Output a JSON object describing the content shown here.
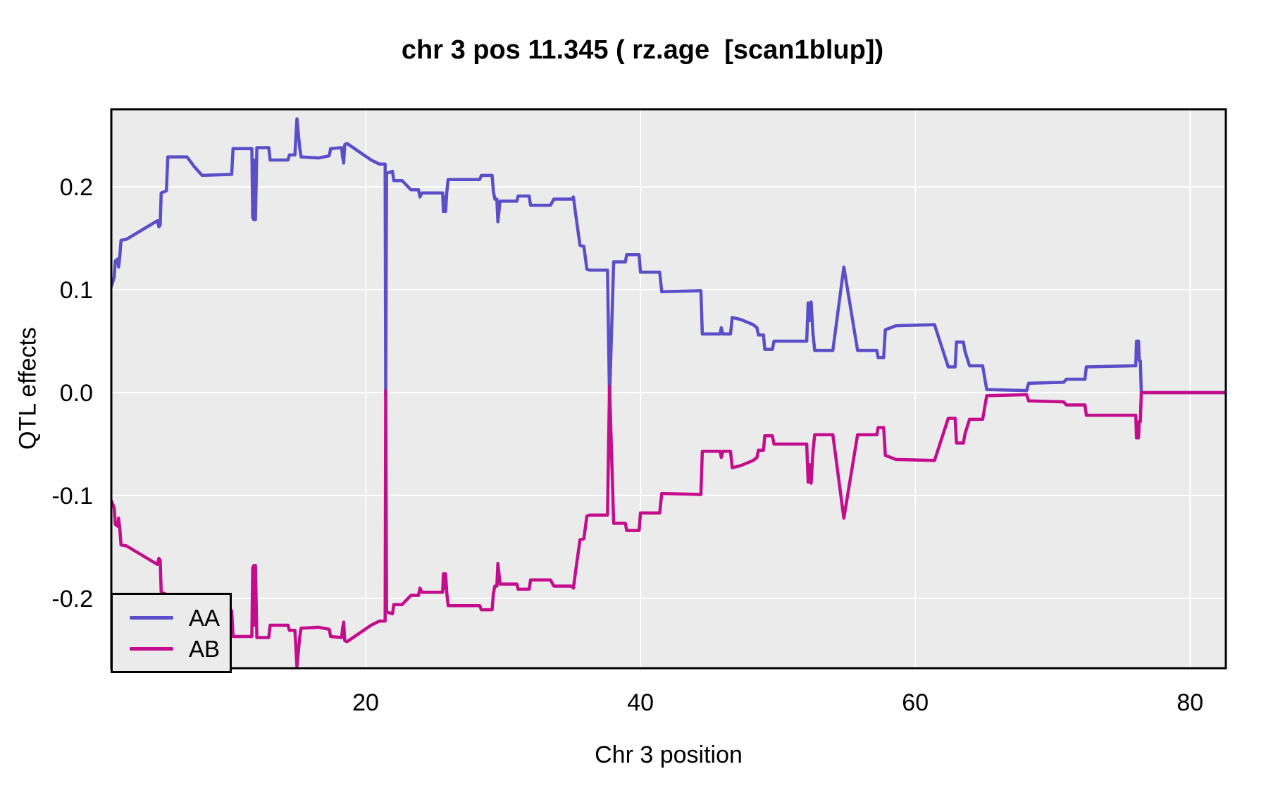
{
  "page": {
    "background": "#FFFFFF"
  },
  "chart_data": {
    "type": "line",
    "title": "chr 3 pos 11.345 ( rz.age  [scan1blup])",
    "xlabel": "Chr 3 position",
    "ylabel": "QTL effects",
    "x_range": [
      1.49,
      82.6
    ],
    "y_range": [
      -0.2678,
      0.2753
    ],
    "x_ticks": [
      {
        "value": 20,
        "label": "20"
      },
      {
        "value": 40,
        "label": "40"
      },
      {
        "value": 60,
        "label": "60"
      },
      {
        "value": 80,
        "label": "80"
      }
    ],
    "y_ticks": [
      {
        "value": 0.2,
        "label": "0.2"
      },
      {
        "value": 0.1,
        "label": "0.1"
      },
      {
        "value": 0,
        "label": "0.0"
      },
      {
        "value": -0.1,
        "label": "-0.1"
      },
      {
        "value": -0.2,
        "label": "-0.2"
      }
    ],
    "grid": {
      "background": "#EBEBEB",
      "line_color": "#FFFFFF",
      "border_color": "#000000"
    },
    "legend": {
      "position": "bottom-left",
      "entries": [
        "AA",
        "AB"
      ]
    },
    "series": [
      {
        "name": "AA",
        "color": "#5A4FC8",
        "points": [
          [
            1.49,
            0.103
          ],
          [
            1.7,
            0.112
          ],
          [
            1.78,
            0.128
          ],
          [
            1.98,
            0.13
          ],
          [
            2.02,
            0.122
          ],
          [
            2.1,
            0.131
          ],
          [
            2.2,
            0.148
          ],
          [
            2.6,
            0.149
          ],
          [
            4.85,
            0.167
          ],
          [
            4.95,
            0.161
          ],
          [
            5.05,
            0.163
          ],
          [
            5.12,
            0.194
          ],
          [
            5.5,
            0.196
          ],
          [
            5.6,
            0.229
          ],
          [
            7.0,
            0.229
          ],
          [
            7.5,
            0.22
          ],
          [
            8.1,
            0.211
          ],
          [
            10.25,
            0.212
          ],
          [
            10.35,
            0.237
          ],
          [
            11.72,
            0.237
          ],
          [
            11.78,
            0.17
          ],
          [
            11.86,
            0.168
          ],
          [
            11.92,
            0.226
          ],
          [
            11.98,
            0.168
          ],
          [
            12.08,
            0.238
          ],
          [
            12.95,
            0.238
          ],
          [
            13.05,
            0.226
          ],
          [
            14.35,
            0.226
          ],
          [
            14.45,
            0.231
          ],
          [
            14.85,
            0.231
          ],
          [
            15.0,
            0.266
          ],
          [
            15.2,
            0.238
          ],
          [
            15.3,
            0.229
          ],
          [
            16.6,
            0.228
          ],
          [
            17.35,
            0.23
          ],
          [
            17.45,
            0.237
          ],
          [
            18.25,
            0.238
          ],
          [
            18.32,
            0.229
          ],
          [
            18.4,
            0.223
          ],
          [
            18.48,
            0.241
          ],
          [
            18.65,
            0.242
          ],
          [
            20.4,
            0.226
          ],
          [
            21.0,
            0.222
          ],
          [
            21.42,
            0.222
          ],
          [
            21.46,
            -0.004
          ],
          [
            21.52,
            0.213
          ],
          [
            21.95,
            0.215
          ],
          [
            22.05,
            0.206
          ],
          [
            22.65,
            0.206
          ],
          [
            23.3,
            0.197
          ],
          [
            23.85,
            0.197
          ],
          [
            23.95,
            0.19
          ],
          [
            24.1,
            0.194
          ],
          [
            25.6,
            0.194
          ],
          [
            25.66,
            0.176
          ],
          [
            25.74,
            0.19
          ],
          [
            25.82,
            0.176
          ],
          [
            25.9,
            0.194
          ],
          [
            26.0,
            0.207
          ],
          [
            28.3,
            0.207
          ],
          [
            28.42,
            0.211
          ],
          [
            29.2,
            0.211
          ],
          [
            29.3,
            0.195
          ],
          [
            29.4,
            0.188
          ],
          [
            29.55,
            0.188
          ],
          [
            29.62,
            0.166
          ],
          [
            29.78,
            0.186
          ],
          [
            31.0,
            0.186
          ],
          [
            31.1,
            0.191
          ],
          [
            31.9,
            0.191
          ],
          [
            32.0,
            0.182
          ],
          [
            33.45,
            0.182
          ],
          [
            33.7,
            0.188
          ],
          [
            35.0,
            0.188
          ],
          [
            35.12,
            0.19
          ],
          [
            35.3,
            0.172
          ],
          [
            35.6,
            0.143
          ],
          [
            35.88,
            0.142
          ],
          [
            36.1,
            0.12
          ],
          [
            36.3,
            0.119
          ],
          [
            37.6,
            0.119
          ],
          [
            37.75,
            -0.006
          ],
          [
            38.05,
            0.127
          ],
          [
            38.9,
            0.127
          ],
          [
            39.0,
            0.134
          ],
          [
            39.9,
            0.134
          ],
          [
            40.0,
            0.117
          ],
          [
            41.4,
            0.117
          ],
          [
            41.55,
            0.098
          ],
          [
            44.4,
            0.099
          ],
          [
            44.5,
            0.057
          ],
          [
            45.8,
            0.057
          ],
          [
            45.88,
            0.063
          ],
          [
            46.0,
            0.057
          ],
          [
            46.55,
            0.057
          ],
          [
            46.68,
            0.073
          ],
          [
            47.3,
            0.071
          ],
          [
            48.2,
            0.066
          ],
          [
            48.48,
            0.063
          ],
          [
            48.58,
            0.056
          ],
          [
            48.95,
            0.056
          ],
          [
            49.05,
            0.042
          ],
          [
            49.6,
            0.042
          ],
          [
            49.72,
            0.05
          ],
          [
            52.1,
            0.05
          ],
          [
            52.2,
            0.087
          ],
          [
            52.3,
            0.07
          ],
          [
            52.42,
            0.088
          ],
          [
            52.55,
            0.058
          ],
          [
            52.68,
            0.041
          ],
          [
            54.0,
            0.041
          ],
          [
            54.8,
            0.122
          ],
          [
            55.8,
            0.041
          ],
          [
            57.2,
            0.041
          ],
          [
            57.3,
            0.034
          ],
          [
            57.7,
            0.034
          ],
          [
            57.82,
            0.061
          ],
          [
            58.6,
            0.065
          ],
          [
            61.4,
            0.066
          ],
          [
            62.4,
            0.025
          ],
          [
            62.9,
            0.025
          ],
          [
            63.0,
            0.049
          ],
          [
            63.5,
            0.049
          ],
          [
            63.62,
            0.04
          ],
          [
            63.95,
            0.026
          ],
          [
            64.9,
            0.026
          ],
          [
            65.2,
            0.003
          ],
          [
            68.1,
            0.002
          ],
          [
            68.25,
            0.009
          ],
          [
            70.8,
            0.01
          ],
          [
            71.0,
            0.013
          ],
          [
            72.35,
            0.013
          ],
          [
            72.45,
            0.025
          ],
          [
            75.9,
            0.026
          ],
          [
            76.05,
            0.026
          ],
          [
            76.1,
            0.05
          ],
          [
            76.25,
            0.05
          ],
          [
            76.3,
            0.031
          ],
          [
            76.38,
            0.031
          ],
          [
            76.45,
            0.0
          ],
          [
            82.6,
            0.0
          ]
        ]
      },
      {
        "name": "AB",
        "color": "#C40D8C",
        "points": [
          [
            1.49,
            -0.105
          ],
          [
            1.7,
            -0.112
          ],
          [
            1.78,
            -0.128
          ],
          [
            1.98,
            -0.13
          ],
          [
            2.02,
            -0.122
          ],
          [
            2.1,
            -0.131
          ],
          [
            2.2,
            -0.148
          ],
          [
            2.6,
            -0.149
          ],
          [
            4.85,
            -0.167
          ],
          [
            4.95,
            -0.161
          ],
          [
            5.05,
            -0.163
          ],
          [
            5.12,
            -0.194
          ],
          [
            5.5,
            -0.196
          ],
          [
            5.6,
            -0.229
          ],
          [
            7.0,
            -0.229
          ],
          [
            7.5,
            -0.22
          ],
          [
            8.1,
            -0.211
          ],
          [
            10.25,
            -0.212
          ],
          [
            10.35,
            -0.237
          ],
          [
            11.72,
            -0.237
          ],
          [
            11.78,
            -0.17
          ],
          [
            11.86,
            -0.168
          ],
          [
            11.92,
            -0.226
          ],
          [
            11.98,
            -0.168
          ],
          [
            12.08,
            -0.238
          ],
          [
            12.95,
            -0.238
          ],
          [
            13.05,
            -0.226
          ],
          [
            14.35,
            -0.226
          ],
          [
            14.45,
            -0.231
          ],
          [
            14.85,
            -0.231
          ],
          [
            15.0,
            -0.266
          ],
          [
            15.2,
            -0.238
          ],
          [
            15.3,
            -0.229
          ],
          [
            16.6,
            -0.228
          ],
          [
            17.35,
            -0.23
          ],
          [
            17.45,
            -0.237
          ],
          [
            18.25,
            -0.238
          ],
          [
            18.32,
            -0.229
          ],
          [
            18.4,
            -0.223
          ],
          [
            18.48,
            -0.241
          ],
          [
            18.65,
            -0.242
          ],
          [
            20.4,
            -0.226
          ],
          [
            21.0,
            -0.222
          ],
          [
            21.42,
            -0.222
          ],
          [
            21.46,
            0.002
          ],
          [
            21.52,
            -0.213
          ],
          [
            21.95,
            -0.215
          ],
          [
            22.05,
            -0.206
          ],
          [
            22.65,
            -0.206
          ],
          [
            23.3,
            -0.197
          ],
          [
            23.85,
            -0.197
          ],
          [
            23.95,
            -0.19
          ],
          [
            24.1,
            -0.194
          ],
          [
            25.6,
            -0.194
          ],
          [
            25.66,
            -0.176
          ],
          [
            25.74,
            -0.19
          ],
          [
            25.82,
            -0.176
          ],
          [
            25.9,
            -0.194
          ],
          [
            26.0,
            -0.207
          ],
          [
            28.3,
            -0.207
          ],
          [
            28.42,
            -0.211
          ],
          [
            29.2,
            -0.211
          ],
          [
            29.3,
            -0.195
          ],
          [
            29.4,
            -0.188
          ],
          [
            29.55,
            -0.188
          ],
          [
            29.62,
            -0.166
          ],
          [
            29.78,
            -0.186
          ],
          [
            31.0,
            -0.186
          ],
          [
            31.1,
            -0.191
          ],
          [
            31.9,
            -0.191
          ],
          [
            32.0,
            -0.182
          ],
          [
            33.45,
            -0.182
          ],
          [
            33.7,
            -0.188
          ],
          [
            35.0,
            -0.188
          ],
          [
            35.12,
            -0.19
          ],
          [
            35.3,
            -0.172
          ],
          [
            35.6,
            -0.143
          ],
          [
            35.88,
            -0.142
          ],
          [
            36.1,
            -0.12
          ],
          [
            36.3,
            -0.119
          ],
          [
            37.6,
            -0.119
          ],
          [
            37.75,
            0.006
          ],
          [
            38.05,
            -0.127
          ],
          [
            38.9,
            -0.127
          ],
          [
            39.0,
            -0.134
          ],
          [
            39.9,
            -0.134
          ],
          [
            40.0,
            -0.117
          ],
          [
            41.4,
            -0.117
          ],
          [
            41.55,
            -0.098
          ],
          [
            44.4,
            -0.099
          ],
          [
            44.5,
            -0.057
          ],
          [
            45.8,
            -0.057
          ],
          [
            45.88,
            -0.063
          ],
          [
            46.0,
            -0.057
          ],
          [
            46.55,
            -0.057
          ],
          [
            46.68,
            -0.073
          ],
          [
            47.3,
            -0.071
          ],
          [
            48.2,
            -0.066
          ],
          [
            48.48,
            -0.063
          ],
          [
            48.58,
            -0.056
          ],
          [
            48.95,
            -0.056
          ],
          [
            49.05,
            -0.042
          ],
          [
            49.6,
            -0.042
          ],
          [
            49.72,
            -0.05
          ],
          [
            52.1,
            -0.05
          ],
          [
            52.2,
            -0.087
          ],
          [
            52.3,
            -0.07
          ],
          [
            52.42,
            -0.088
          ],
          [
            52.55,
            -0.058
          ],
          [
            52.68,
            -0.041
          ],
          [
            54.0,
            -0.041
          ],
          [
            54.8,
            -0.122
          ],
          [
            55.8,
            -0.041
          ],
          [
            57.2,
            -0.041
          ],
          [
            57.3,
            -0.034
          ],
          [
            57.7,
            -0.034
          ],
          [
            57.82,
            -0.061
          ],
          [
            58.6,
            -0.065
          ],
          [
            61.4,
            -0.066
          ],
          [
            62.4,
            -0.025
          ],
          [
            62.9,
            -0.025
          ],
          [
            63.0,
            -0.049
          ],
          [
            63.5,
            -0.049
          ],
          [
            63.62,
            -0.04
          ],
          [
            63.95,
            -0.026
          ],
          [
            64.9,
            -0.026
          ],
          [
            65.2,
            -0.003
          ],
          [
            68.1,
            -0.002
          ],
          [
            68.25,
            -0.008
          ],
          [
            70.8,
            -0.009
          ],
          [
            71.0,
            -0.012
          ],
          [
            72.35,
            -0.012
          ],
          [
            72.45,
            -0.022
          ],
          [
            75.9,
            -0.022
          ],
          [
            76.05,
            -0.022
          ],
          [
            76.1,
            -0.044
          ],
          [
            76.25,
            -0.044
          ],
          [
            76.3,
            -0.028
          ],
          [
            76.38,
            -0.028
          ],
          [
            76.45,
            0.0
          ],
          [
            82.6,
            0.0
          ]
        ]
      }
    ]
  }
}
